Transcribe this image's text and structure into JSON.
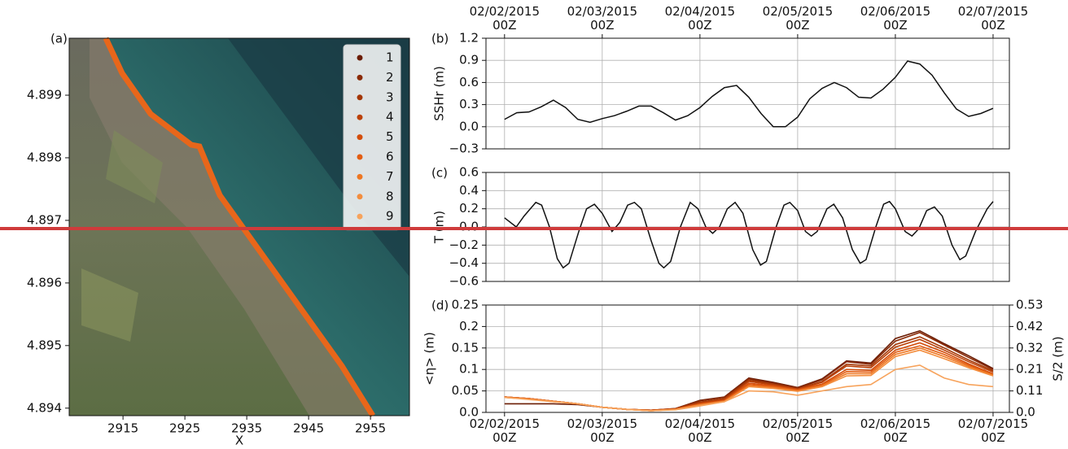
{
  "chart_data": [
    {
      "type": "map",
      "label": "(a)",
      "xlabel": "X",
      "xlim": [
        2906.3,
        2961.3
      ],
      "xticks": [
        2915,
        2925,
        2935,
        2945,
        2955
      ],
      "ylim": [
        4.89388,
        4.89991
      ],
      "yticks": [
        4.894,
        4.895,
        4.896,
        4.897,
        4.898,
        4.899
      ],
      "legend": {
        "position": "upper right",
        "items": [
          {
            "name": "1",
            "color": "#6b1d05"
          },
          {
            "name": "2",
            "color": "#8a2a06"
          },
          {
            "name": "3",
            "color": "#a33605"
          },
          {
            "name": "4",
            "color": "#bb4108"
          },
          {
            "name": "5",
            "color": "#d34d0b"
          },
          {
            "name": "6",
            "color": "#e35d12"
          },
          {
            "name": "7",
            "color": "#ee7722"
          },
          {
            "name": "8",
            "color": "#f38d3d"
          },
          {
            "name": "9",
            "color": "#f7a35c"
          }
        ]
      }
    },
    {
      "type": "line",
      "label": "(b)",
      "ylabel": "SSHr (m)",
      "grid": true,
      "xtick_labels": "top",
      "color": "#111111",
      "xlim": [
        -0.19,
        5.167
      ],
      "xticks": [
        {
          "value": 0,
          "label": "02/02/2015 00Z"
        },
        {
          "value": 1,
          "label": "02/03/2015 00Z"
        },
        {
          "value": 2,
          "label": "02/04/2015 00Z"
        },
        {
          "value": 3,
          "label": "02/05/2015 00Z"
        },
        {
          "value": 4,
          "label": "02/06/2015 00Z"
        },
        {
          "value": 5,
          "label": "02/07/2015 00Z"
        }
      ],
      "ylim": [
        -0.3,
        1.2
      ],
      "yticks": [
        {
          "value": -0.3,
          "label": "−0.3"
        },
        {
          "value": 0,
          "label": "0.0"
        },
        0.3,
        0.6,
        0.9,
        1.2
      ],
      "x": [
        0,
        0.125,
        0.25,
        0.375,
        0.5,
        0.625,
        0.75,
        0.875,
        1,
        1.125,
        1.25,
        1.375,
        1.5,
        1.625,
        1.75,
        1.875,
        2,
        2.125,
        2.25,
        2.375,
        2.5,
        2.625,
        2.75,
        2.875,
        3,
        3.125,
        3.25,
        3.375,
        3.5,
        3.625,
        3.75,
        3.875,
        4,
        4.125,
        4.25,
        4.375,
        4.5,
        4.625,
        4.75,
        4.875,
        5
      ],
      "values": [
        0.1,
        0.19,
        0.2,
        0.27,
        0.36,
        0.26,
        0.1,
        0.06,
        0.11,
        0.15,
        0.21,
        0.28,
        0.28,
        0.19,
        0.09,
        0.15,
        0.26,
        0.41,
        0.53,
        0.56,
        0.4,
        0.18,
        0.0,
        0.0,
        0.13,
        0.38,
        0.52,
        0.6,
        0.53,
        0.4,
        0.39,
        0.51,
        0.67,
        0.89,
        0.85,
        0.7,
        0.46,
        0.24,
        0.14,
        0.18,
        0.25
      ]
    },
    {
      "type": "line",
      "label": "(c)",
      "ylabel": "T (m)",
      "grid": true,
      "xtick_labels": "none",
      "color": "#111111",
      "xlim": [
        -0.19,
        5.167
      ],
      "xticks": [
        0,
        1,
        2,
        3,
        4,
        5
      ],
      "ylim": [
        -0.6,
        0.6
      ],
      "yticks": [
        {
          "value": -0.6,
          "label": "−0.6"
        },
        {
          "value": -0.4,
          "label": "−0.4"
        },
        {
          "value": -0.2,
          "label": "−0.2"
        },
        {
          "value": 0,
          "label": "0.0"
        },
        0.2,
        0.4,
        0.6
      ],
      "x": [
        0,
        0.12,
        0.2,
        0.32,
        0.38,
        0.46,
        0.54,
        0.6,
        0.66,
        0.76,
        0.84,
        0.92,
        1.0,
        1.1,
        1.18,
        1.26,
        1.33,
        1.4,
        1.5,
        1.58,
        1.63,
        1.7,
        1.8,
        1.9,
        1.98,
        2.06,
        2.13,
        2.2,
        2.28,
        2.36,
        2.44,
        2.54,
        2.62,
        2.68,
        2.78,
        2.86,
        2.92,
        3.0,
        3.08,
        3.14,
        3.2,
        3.3,
        3.37,
        3.46,
        3.56,
        3.64,
        3.7,
        3.8,
        3.88,
        3.94,
        4.0,
        4.1,
        4.17,
        4.24,
        4.32,
        4.4,
        4.48,
        4.58,
        4.66,
        4.72,
        4.82,
        4.94,
        5.0
      ],
      "values": [
        0.1,
        0.0,
        0.12,
        0.27,
        0.24,
        0.0,
        -0.35,
        -0.45,
        -0.4,
        -0.05,
        0.2,
        0.25,
        0.15,
        -0.05,
        0.05,
        0.24,
        0.27,
        0.2,
        -0.15,
        -0.4,
        -0.45,
        -0.38,
        0.0,
        0.27,
        0.2,
        0.0,
        -0.07,
        0.0,
        0.2,
        0.27,
        0.15,
        -0.25,
        -0.42,
        -0.38,
        0.0,
        0.24,
        0.27,
        0.18,
        -0.05,
        -0.1,
        -0.05,
        0.2,
        0.25,
        0.1,
        -0.25,
        -0.4,
        -0.36,
        0.0,
        0.25,
        0.28,
        0.2,
        -0.05,
        -0.1,
        -0.02,
        0.18,
        0.22,
        0.12,
        -0.2,
        -0.36,
        -0.32,
        -0.05,
        0.2,
        0.28
      ]
    },
    {
      "type": "line",
      "label": "(d)",
      "ylabel": "<η> (m)",
      "y2label": "S/2 (m)",
      "grid": true,
      "xtick_labels": "bottom",
      "xlim": [
        -0.19,
        5.167
      ],
      "xticks": [
        {
          "value": 0,
          "label": "02/02/2015 00Z"
        },
        {
          "value": 1,
          "label": "02/03/2015 00Z"
        },
        {
          "value": 2,
          "label": "02/04/2015 00Z"
        },
        {
          "value": 3,
          "label": "02/05/2015 00Z"
        },
        {
          "value": 4,
          "label": "02/06/2015 00Z"
        },
        {
          "value": 5,
          "label": "02/07/2015 00Z"
        }
      ],
      "ylim": [
        0,
        0.25
      ],
      "yticks": [
        {
          "value": 0,
          "label": "0.0"
        },
        0.05,
        {
          "value": 0.1,
          "label": "0.1"
        },
        0.15,
        {
          "value": 0.2,
          "label": "0.2"
        },
        0.25
      ],
      "y2lim": [
        0,
        0.53
      ],
      "y2ticks": [
        {
          "value": 0,
          "label": "0.0"
        },
        {
          "value": 0.106,
          "label": "0.11"
        },
        {
          "value": 0.212,
          "label": "0.21"
        },
        {
          "value": 0.318,
          "label": "0.32"
        },
        {
          "value": 0.424,
          "label": "0.42"
        },
        0.53
      ],
      "x": [
        0,
        0.25,
        0.5,
        0.75,
        1,
        1.25,
        1.5,
        1.75,
        2,
        2.25,
        2.5,
        2.75,
        3,
        3.25,
        3.5,
        3.75,
        4,
        4.25,
        4.5,
        4.75,
        5
      ],
      "series": [
        {
          "color": "#6b1d05",
          "values": [
            0.02,
            0.02,
            0.02,
            0.018,
            0.012,
            0.007,
            0.005,
            0.009,
            0.028,
            0.036,
            0.08,
            0.07,
            0.058,
            0.078,
            0.12,
            0.115,
            0.172,
            0.19,
            0.16,
            0.132,
            0.102
          ]
        },
        {
          "color": "#8a2a06",
          "values": [
            0.036,
            0.032,
            0.026,
            0.02,
            0.012,
            0.007,
            0.005,
            0.009,
            0.027,
            0.035,
            0.078,
            0.068,
            0.057,
            0.076,
            0.118,
            0.112,
            0.166,
            0.186,
            0.157,
            0.128,
            0.1
          ]
        },
        {
          "color": "#a33605",
          "values": [
            0.036,
            0.032,
            0.026,
            0.02,
            0.012,
            0.007,
            0.005,
            0.008,
            0.024,
            0.032,
            0.075,
            0.066,
            0.055,
            0.072,
            0.112,
            0.108,
            0.158,
            0.176,
            0.15,
            0.122,
            0.097
          ]
        },
        {
          "color": "#bb4108",
          "values": [
            0.036,
            0.032,
            0.026,
            0.02,
            0.012,
            0.007,
            0.005,
            0.008,
            0.022,
            0.03,
            0.072,
            0.064,
            0.054,
            0.07,
            0.108,
            0.104,
            0.152,
            0.17,
            0.145,
            0.118,
            0.094
          ]
        },
        {
          "color": "#d34d0b",
          "values": [
            0.036,
            0.032,
            0.026,
            0.02,
            0.012,
            0.007,
            0.005,
            0.008,
            0.02,
            0.028,
            0.068,
            0.062,
            0.053,
            0.066,
            0.1,
            0.098,
            0.145,
            0.162,
            0.14,
            0.113,
            0.09
          ]
        },
        {
          "color": "#e35d12",
          "values": [
            0.036,
            0.032,
            0.026,
            0.02,
            0.012,
            0.007,
            0.004,
            0.007,
            0.019,
            0.027,
            0.065,
            0.06,
            0.052,
            0.064,
            0.095,
            0.094,
            0.14,
            0.155,
            0.135,
            0.11,
            0.088
          ]
        },
        {
          "color": "#ee7722",
          "values": [
            0.035,
            0.031,
            0.026,
            0.02,
            0.012,
            0.007,
            0.004,
            0.007,
            0.018,
            0.026,
            0.062,
            0.058,
            0.05,
            0.062,
            0.09,
            0.09,
            0.135,
            0.15,
            0.13,
            0.107,
            0.087
          ]
        },
        {
          "color": "#f38d3d",
          "values": [
            0.035,
            0.031,
            0.025,
            0.02,
            0.012,
            0.007,
            0.004,
            0.007,
            0.017,
            0.025,
            0.06,
            0.056,
            0.049,
            0.06,
            0.085,
            0.086,
            0.13,
            0.145,
            0.125,
            0.104,
            0.085
          ]
        },
        {
          "color": "#f7a35c",
          "values": [
            0.035,
            0.03,
            0.025,
            0.02,
            0.012,
            0.007,
            0.004,
            0.006,
            0.015,
            0.025,
            0.05,
            0.048,
            0.04,
            0.05,
            0.06,
            0.065,
            0.1,
            0.11,
            0.08,
            0.065,
            0.06
          ]
        }
      ]
    }
  ]
}
